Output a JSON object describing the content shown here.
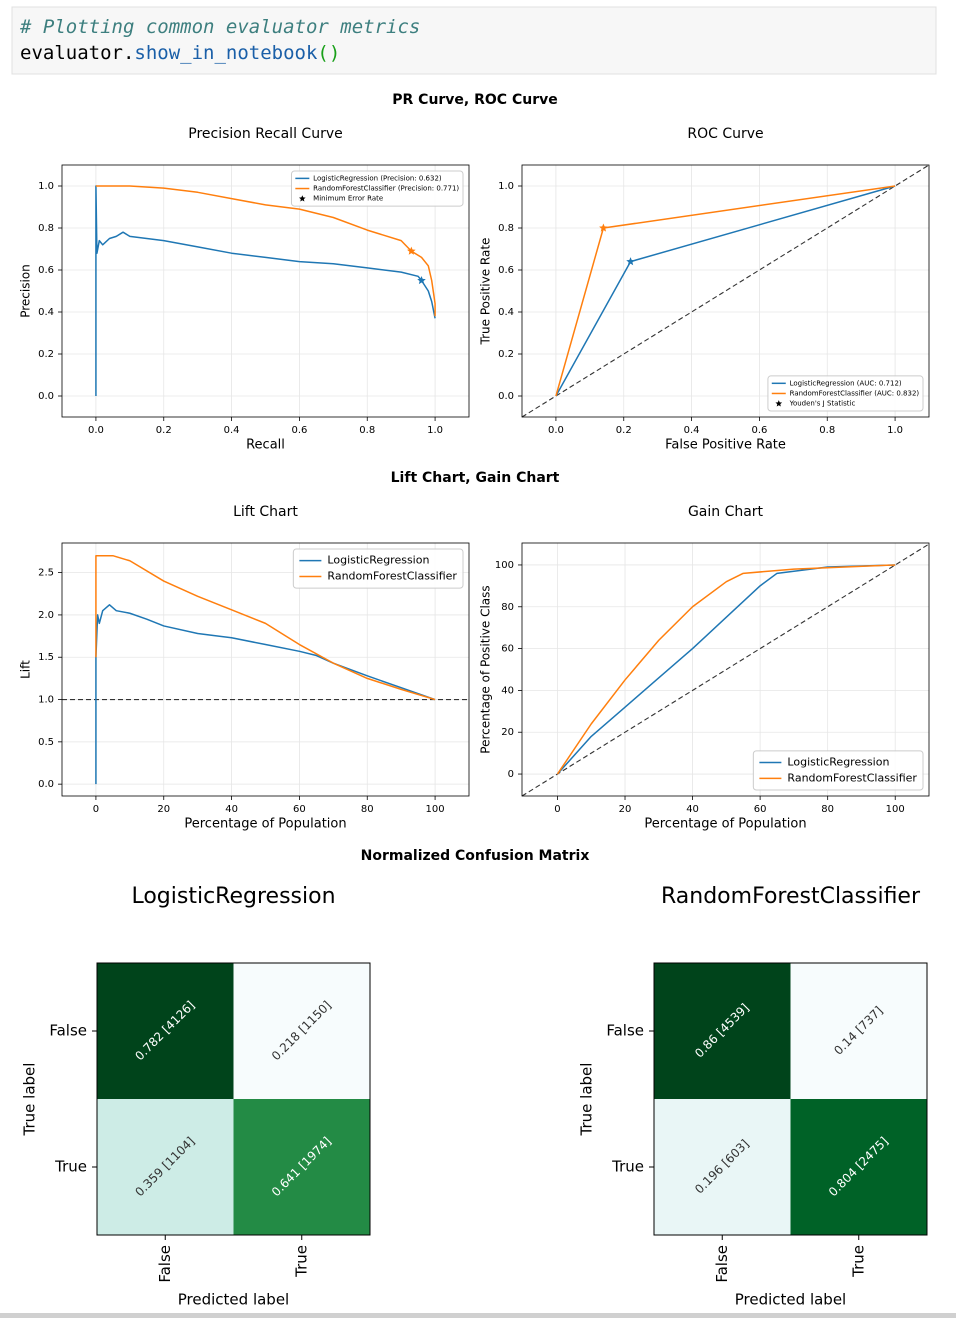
{
  "code_cell": {
    "lines": [
      [
        "# Plotting common evaluator metrics"
      ],
      [
        "evaluator.",
        "show_in_notebook",
        "()"
      ]
    ]
  },
  "figure_titles": [
    "PR Curve, ROC Curve",
    "Lift Chart, Gain Chart",
    "Normalized Confusion Matrix"
  ],
  "chart_data": [
    {
      "type": "line",
      "title": "Precision Recall Curve",
      "xlabel": "Recall",
      "ylabel": "Precision",
      "xlim": [
        -0.1,
        1.1
      ],
      "ylim": [
        -0.1,
        1.1
      ],
      "xticks": [
        {
          "value": 0,
          "label": "0.0"
        },
        0.2,
        0.4,
        0.6,
        0.8,
        {
          "value": 1,
          "label": "1.0"
        }
      ],
      "yticks": [
        {
          "value": 0,
          "label": "0.0"
        },
        0.2,
        0.4,
        0.6,
        0.8,
        {
          "value": 1,
          "label": "1.0"
        }
      ],
      "grid": true,
      "legend": "upper right",
      "marker_label": "Minimum Error Rate",
      "series": [
        {
          "name": "LogisticRegression (Precision: 0.632)",
          "color": "#1f77b4",
          "x": [
            0,
            0,
            0.003,
            0.01,
            0.02,
            0.04,
            0.06,
            0.08,
            0.1,
            0.15,
            0.2,
            0.3,
            0.4,
            0.5,
            0.6,
            0.7,
            0.8,
            0.9,
            0.95,
            0.96,
            0.98,
            0.99,
            1.0
          ],
          "values": [
            0,
            1.0,
            0.68,
            0.74,
            0.72,
            0.75,
            0.76,
            0.78,
            0.76,
            0.75,
            0.74,
            0.71,
            0.68,
            0.66,
            0.64,
            0.63,
            0.61,
            0.59,
            0.57,
            0.55,
            0.5,
            0.45,
            0.37
          ],
          "marker": {
            "x": 0.96,
            "value": 0.55
          }
        },
        {
          "name": "RandomForestClassifier (Precision: 0.771)",
          "color": "#ff7f0e",
          "x": [
            0,
            0.05,
            0.1,
            0.2,
            0.3,
            0.4,
            0.5,
            0.6,
            0.7,
            0.8,
            0.9,
            0.93,
            0.96,
            0.98,
            0.99,
            1.0,
            1.0
          ],
          "values": [
            1.0,
            1.0,
            1.0,
            0.99,
            0.97,
            0.94,
            0.91,
            0.89,
            0.85,
            0.79,
            0.74,
            0.69,
            0.66,
            0.62,
            0.55,
            0.44,
            0.38
          ],
          "marker": {
            "x": 0.93,
            "value": 0.69
          }
        }
      ]
    },
    {
      "type": "line",
      "title": "ROC Curve",
      "xlabel": "False Positive Rate",
      "ylabel": "True Positive Rate",
      "xlim": [
        -0.1,
        1.1
      ],
      "ylim": [
        -0.1,
        1.1
      ],
      "xticks": [
        {
          "value": 0,
          "label": "0.0"
        },
        0.2,
        0.4,
        0.6,
        0.8,
        {
          "value": 1,
          "label": "1.0"
        }
      ],
      "yticks": [
        {
          "value": 0,
          "label": "0.0"
        },
        0.2,
        0.4,
        0.6,
        0.8,
        {
          "value": 1,
          "label": "1.0"
        }
      ],
      "grid": true,
      "legend": "lower right",
      "marker_label": "Youden's J Statistic",
      "reference_line": {
        "x": [
          -0.1,
          1.1
        ],
        "values": [
          -0.1,
          1.1
        ]
      },
      "series": [
        {
          "name": "LogisticRegression (AUC: 0.712)",
          "color": "#1f77b4",
          "x": [
            0,
            0.22,
            1
          ],
          "values": [
            0,
            0.64,
            1
          ],
          "marker": {
            "x": 0.22,
            "value": 0.64
          }
        },
        {
          "name": "RandomForestClassifier (AUC: 0.832)",
          "color": "#ff7f0e",
          "x": [
            0,
            0.14,
            1
          ],
          "values": [
            0,
            0.8,
            1
          ],
          "marker": {
            "x": 0.14,
            "value": 0.8
          }
        }
      ]
    },
    {
      "type": "line",
      "title": "Lift Chart",
      "xlabel": "Percentage of Population",
      "ylabel": "Lift",
      "xlim": [
        -10,
        110
      ],
      "ylim": [
        -0.14,
        2.85
      ],
      "xticks": [
        0,
        20,
        40,
        60,
        80,
        100
      ],
      "yticks": [
        {
          "value": 0,
          "label": "0.0"
        },
        0.5,
        {
          "value": 1,
          "label": "1.0"
        },
        1.5,
        {
          "value": 2,
          "label": "2.0"
        },
        2.5
      ],
      "grid": true,
      "legend": "upper right",
      "reference_line": {
        "x": [
          -10,
          110
        ],
        "values": [
          1,
          1
        ]
      },
      "series": [
        {
          "name": "LogisticRegression",
          "color": "#1f77b4",
          "x": [
            0,
            0,
            0.5,
            1,
            2,
            4,
            6,
            10,
            15,
            20,
            30,
            40,
            50,
            60,
            65,
            70,
            80,
            90,
            100
          ],
          "values": [
            0,
            1.5,
            2.0,
            1.9,
            2.05,
            2.12,
            2.05,
            2.02,
            1.95,
            1.87,
            1.78,
            1.73,
            1.65,
            1.57,
            1.52,
            1.43,
            1.28,
            1.14,
            1.0
          ]
        },
        {
          "name": "RandomForestClassifier",
          "color": "#ff7f0e",
          "x": [
            0,
            0,
            5,
            10,
            20,
            30,
            40,
            50,
            60,
            70,
            80,
            90,
            100
          ],
          "values": [
            1.5,
            2.7,
            2.7,
            2.64,
            2.4,
            2.22,
            2.06,
            1.9,
            1.65,
            1.43,
            1.25,
            1.12,
            1.0
          ]
        }
      ]
    },
    {
      "type": "line",
      "title": "Gain Chart",
      "xlabel": "Percentage of Population",
      "ylabel": "Percentage of Positive Class",
      "xlim": [
        -10.5,
        110
      ],
      "ylim": [
        -10.5,
        110.5
      ],
      "xticks": [
        0,
        20,
        40,
        60,
        80,
        100
      ],
      "yticks": [
        0,
        20,
        40,
        60,
        80,
        100
      ],
      "grid": true,
      "legend": "lower right",
      "reference_line": {
        "x": [
          -10.5,
          110
        ],
        "values": [
          -10.5,
          110
        ]
      },
      "series": [
        {
          "name": "LogisticRegression",
          "color": "#1f77b4",
          "x": [
            0,
            10,
            20,
            30,
            40,
            50,
            60,
            65,
            80,
            100
          ],
          "values": [
            0,
            18,
            32,
            46,
            60,
            75,
            90,
            96,
            99,
            100
          ]
        },
        {
          "name": "RandomForestClassifier",
          "color": "#ff7f0e",
          "x": [
            0,
            10,
            20,
            30,
            40,
            50,
            55,
            70,
            100
          ],
          "values": [
            0,
            24,
            45,
            64,
            80,
            92,
            96,
            98,
            100
          ]
        }
      ]
    },
    {
      "type": "heatmap",
      "title": "LogisticRegression",
      "xlabel": "Predicted label",
      "ylabel": "True label",
      "x_categories": [
        "False",
        "True"
      ],
      "y_categories": [
        "False",
        "True"
      ],
      "values": [
        [
          0.782,
          0.218
        ],
        [
          0.359,
          0.641
        ]
      ],
      "value_labels": [
        [
          "0.782 [4126]",
          "0.218 [1150]"
        ],
        [
          "0.359 [1104]",
          "0.641 [1974]"
        ]
      ],
      "colors": [
        [
          "#00441b",
          "#f7fcfd"
        ],
        [
          "#cdece6",
          "#238b45"
        ]
      ]
    },
    {
      "type": "heatmap",
      "title": "RandomForestClassifier",
      "xlabel": "Predicted label",
      "ylabel": "True label",
      "x_categories": [
        "False",
        "True"
      ],
      "y_categories": [
        "False",
        "True"
      ],
      "values": [
        [
          0.86,
          0.14
        ],
        [
          0.196,
          0.804
        ]
      ],
      "value_labels": [
        [
          "0.86 [4539]",
          "0.14 [737]"
        ],
        [
          "0.196 [603]",
          "0.804 [2475]"
        ]
      ],
      "colors": [
        [
          "#00441b",
          "#f7fcfd"
        ],
        [
          "#e9f6f6",
          "#006227"
        ]
      ]
    }
  ]
}
